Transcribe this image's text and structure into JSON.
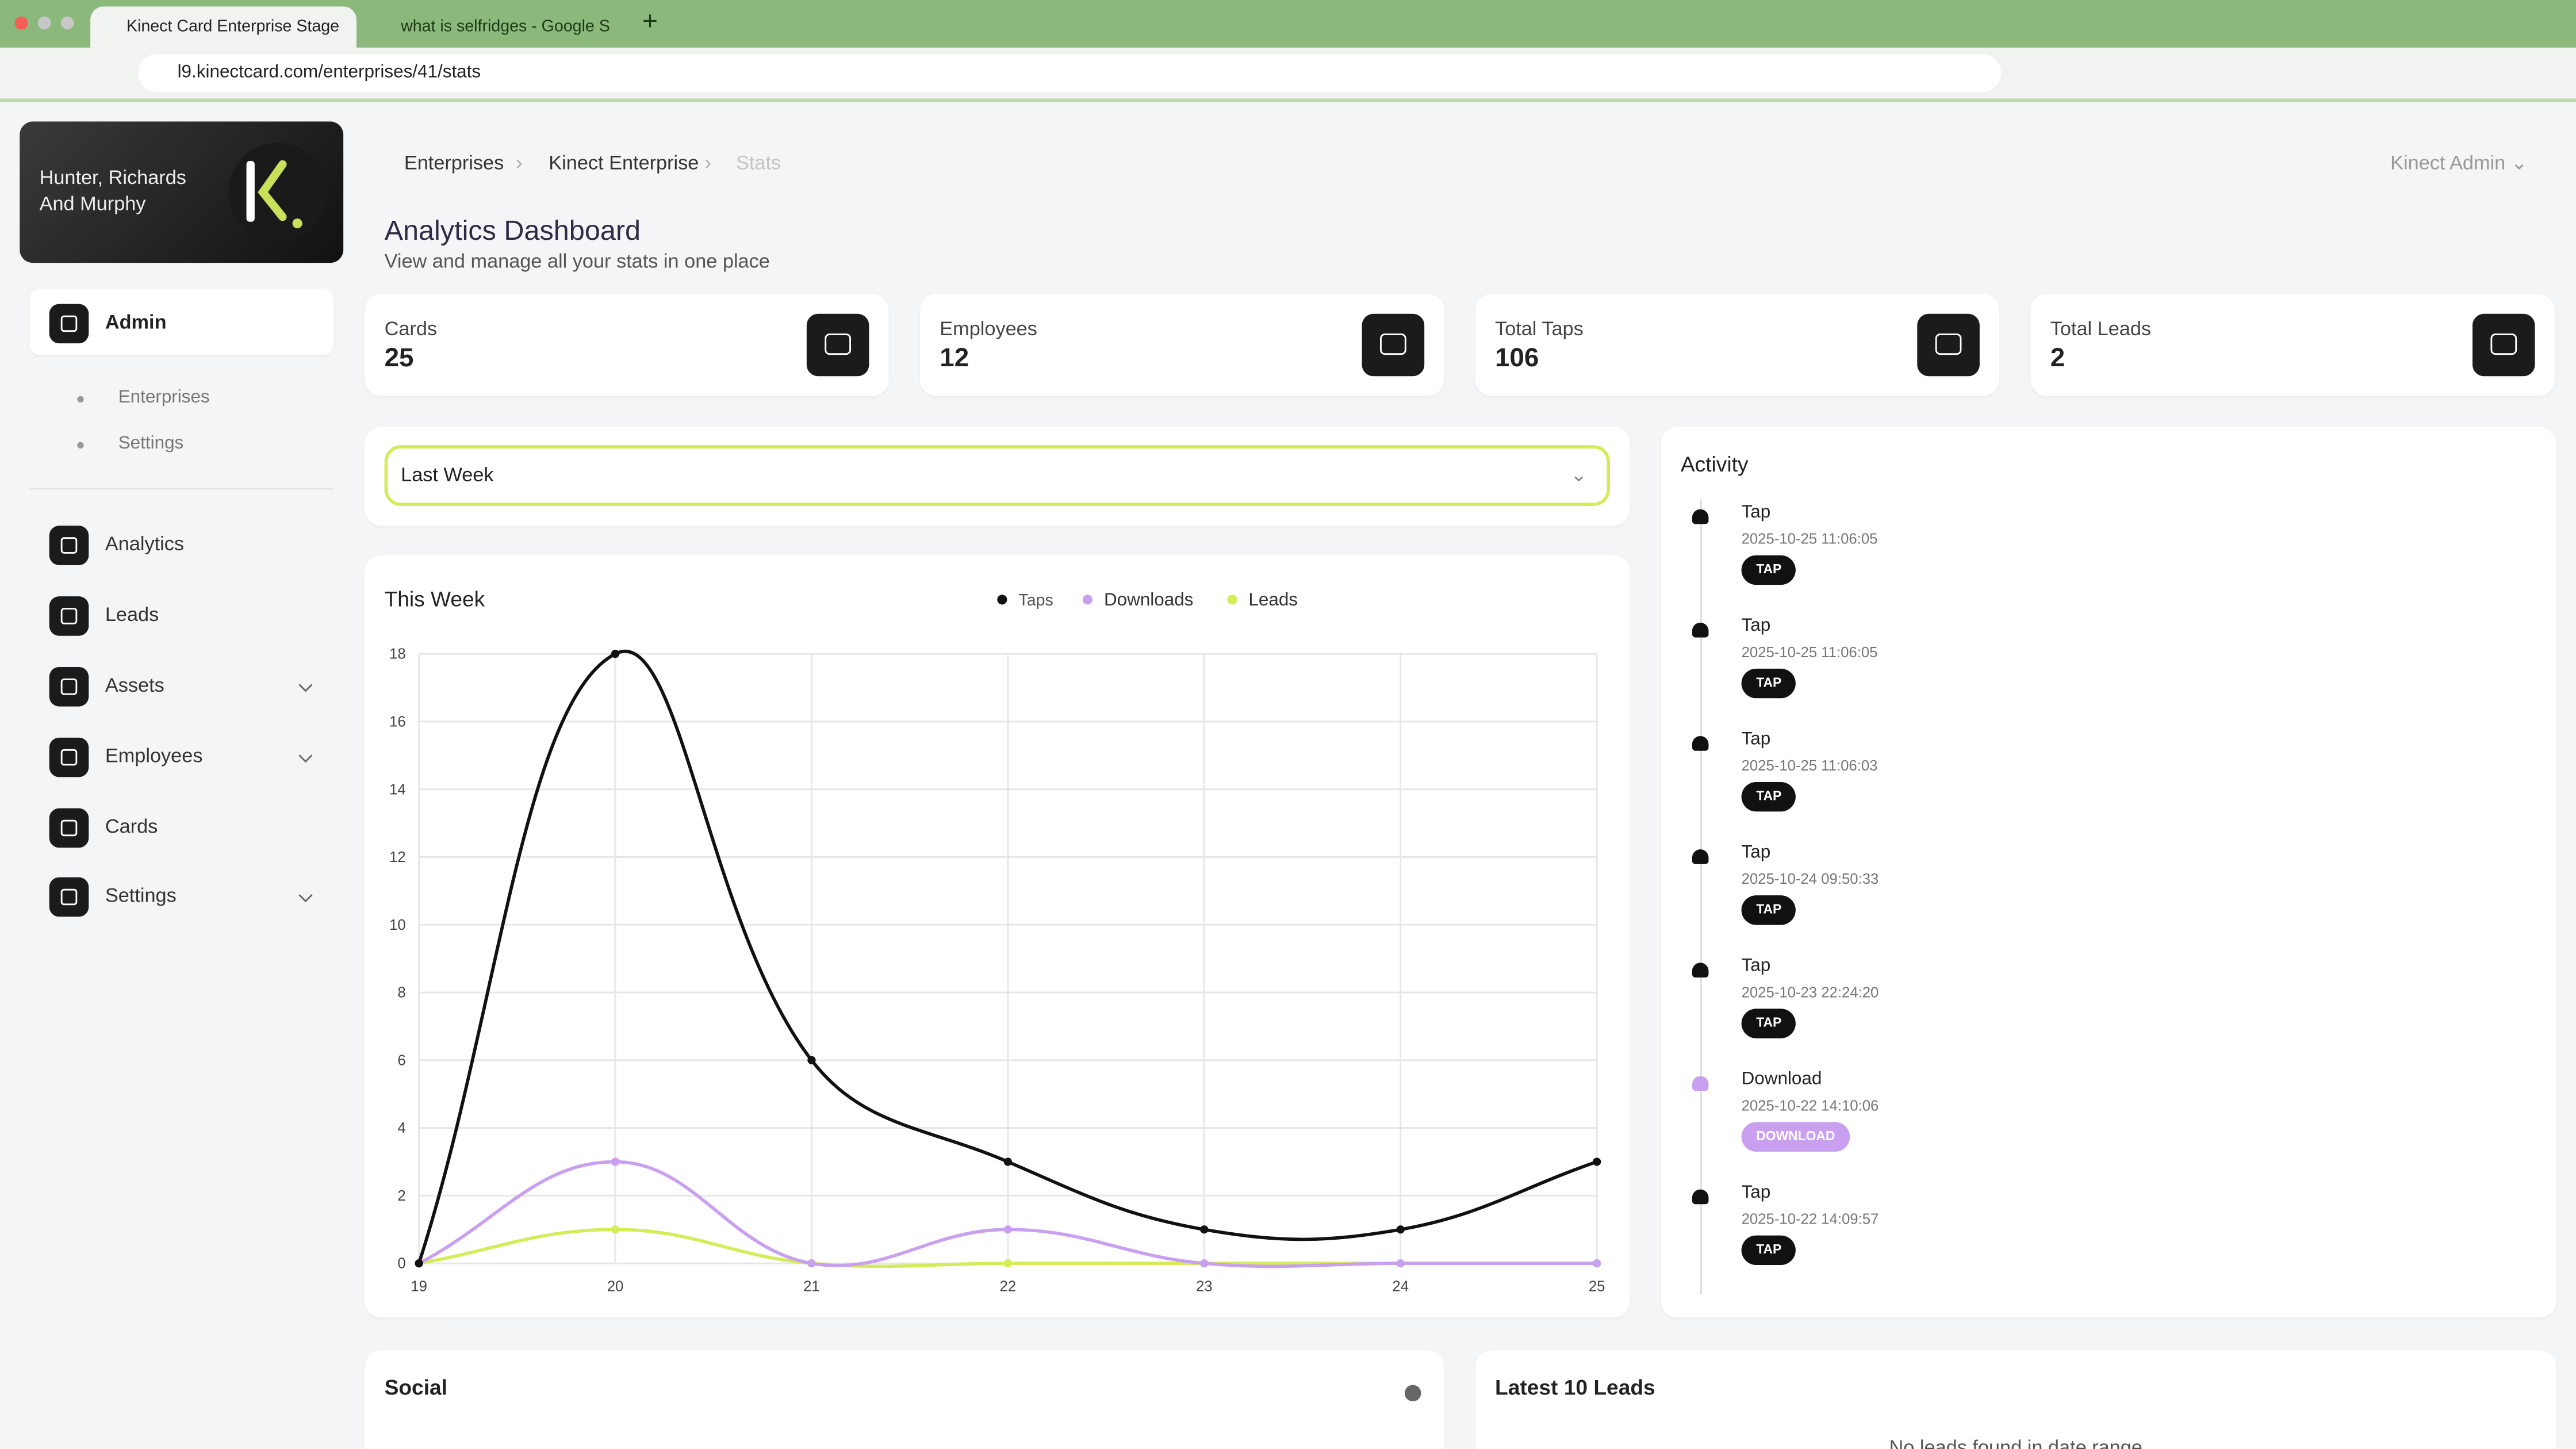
{
  "browser": {
    "tabs": [
      "Kinect Card Enterprise Stage",
      "what is selfridges - Google S"
    ],
    "url": "l9.kinectcard.com/enterprises/41/stats"
  },
  "sidebar": {
    "brand": "Hunter, Richards And Murphy",
    "admin": "Admin",
    "admin_sub": [
      "Enterprises",
      "Settings"
    ],
    "nav": [
      "Analytics",
      "Leads",
      "Assets",
      "Employees",
      "Cards",
      "Settings"
    ]
  },
  "header": {
    "breadcrumbs": [
      "Enterprises",
      "Kinect Enterprise",
      "Stats"
    ],
    "user": "Kinect Admin",
    "title": "Analytics Dashboard",
    "subtitle": "View and manage all your stats in one place"
  },
  "stats": [
    {
      "label": "Cards",
      "value": 25
    },
    {
      "label": "Employees",
      "value": 12
    },
    {
      "label": "Total Taps",
      "value": 106
    },
    {
      "label": "Total Leads",
      "value": 2
    }
  ],
  "filter": "Last Week",
  "chart_data": {
    "type": "line",
    "title": "This Week",
    "categories": [
      "19",
      "20",
      "21",
      "22",
      "23",
      "24",
      "25"
    ],
    "series": [
      {
        "name": "Taps",
        "color": "#111111",
        "values": [
          0,
          18,
          6,
          3,
          1,
          1,
          3
        ]
      },
      {
        "name": "Downloads",
        "color": "#c9a0f0",
        "values": [
          0,
          3,
          0,
          1,
          0,
          0,
          0
        ]
      },
      {
        "name": "Leads",
        "color": "#d4ec5a",
        "values": [
          0,
          1,
          0,
          0,
          0,
          0,
          0
        ]
      }
    ],
    "ylim": [
      0,
      18
    ],
    "yticks": [
      0,
      2,
      4,
      6,
      8,
      10,
      12,
      14,
      16,
      18
    ],
    "grid": true
  },
  "activity": {
    "title": "Activity",
    "items": [
      {
        "title": "Tap",
        "time": "2025-10-25 11:06:05",
        "badge": "TAP",
        "color": "#111111"
      },
      {
        "title": "Tap",
        "time": "2025-10-25 11:06:05",
        "badge": "TAP",
        "color": "#111111"
      },
      {
        "title": "Tap",
        "time": "2025-10-25 11:06:03",
        "badge": "TAP",
        "color": "#111111"
      },
      {
        "title": "Tap",
        "time": "2025-10-24 09:50:33",
        "badge": "TAP",
        "color": "#111111"
      },
      {
        "title": "Tap",
        "time": "2025-10-23 22:24:20",
        "badge": "TAP",
        "color": "#111111"
      },
      {
        "title": "Download",
        "time": "2025-10-22 14:10:06",
        "badge": "DOWNLOAD",
        "color": "#c9a0f0"
      },
      {
        "title": "Tap",
        "time": "2025-10-22 14:09:57",
        "badge": "TAP",
        "color": "#111111"
      }
    ]
  },
  "social": {
    "title": "Social"
  },
  "leads": {
    "title": "Latest 10 Leads",
    "empty": "No leads found in date range"
  }
}
